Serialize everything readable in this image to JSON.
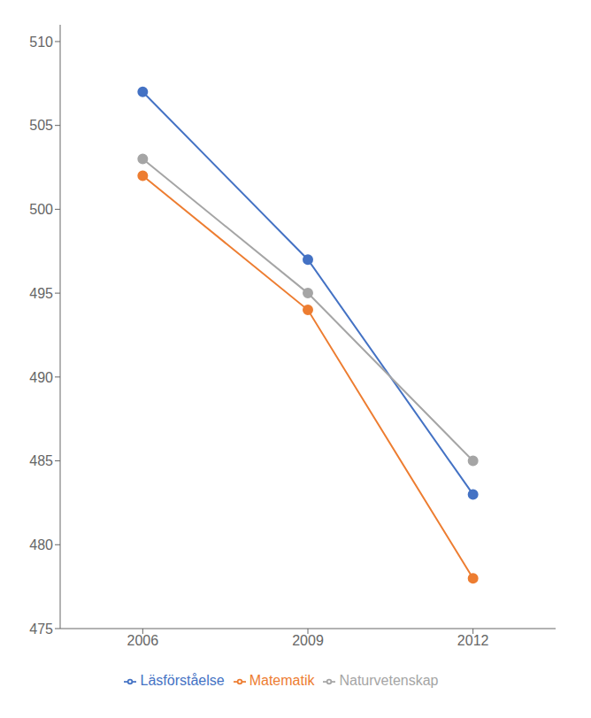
{
  "chart_data": {
    "type": "line",
    "x": [
      2006,
      2009,
      2012
    ],
    "series": [
      {
        "name": "Läsförståelse",
        "color": "#4472C4",
        "values": [
          507,
          497,
          483
        ],
        "marker": "circle"
      },
      {
        "name": "Matematik",
        "color": "#ED7D31",
        "values": [
          502,
          494,
          478
        ],
        "marker": "circle"
      },
      {
        "name": "Naturvetenskap",
        "color": "#A5A5A5",
        "values": [
          503,
          495,
          485
        ],
        "marker": "circle"
      }
    ],
    "xlim": [
      2004.5,
      2013.5
    ],
    "xticks": [
      2006,
      2009,
      2012
    ],
    "ylim": [
      475,
      511
    ],
    "yticks": [
      475,
      480,
      485,
      490,
      495,
      500,
      505,
      510
    ],
    "grid": false,
    "legend": "bottom"
  }
}
